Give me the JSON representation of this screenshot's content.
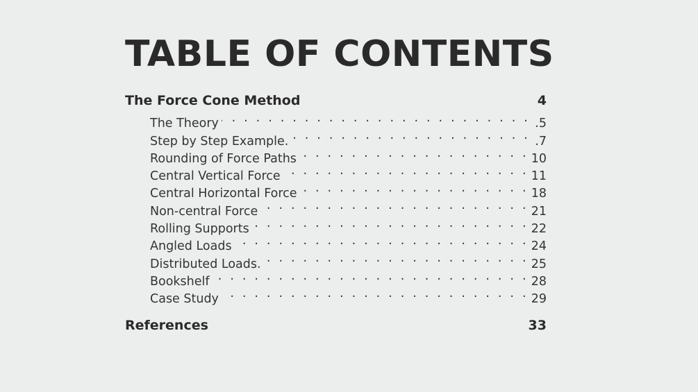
{
  "title": "TABLE OF CONTENTS",
  "sections": [
    {
      "title": "The Force Cone Method",
      "page": "4",
      "entries": [
        {
          "title": "The Theory",
          "page": ".5"
        },
        {
          "title": "Step by Step Example.",
          "page": ".7"
        },
        {
          "title": "Rounding of Force Paths",
          "page": "10"
        },
        {
          "title": "Central Vertical Force",
          "page": "11"
        },
        {
          "title": "Central Horizontal Force",
          "page": "18"
        },
        {
          "title": "Non-central Force",
          "page": "21"
        },
        {
          "title": "Rolling Supports",
          "page": "22"
        },
        {
          "title": "Angled Loads",
          "page": "24"
        },
        {
          "title": "Distributed Loads.",
          "page": "25"
        },
        {
          "title": "Bookshelf",
          "page": "28"
        },
        {
          "title": "Case Study",
          "page": "29"
        }
      ]
    },
    {
      "title": "References",
      "page": "33",
      "entries": []
    }
  ]
}
